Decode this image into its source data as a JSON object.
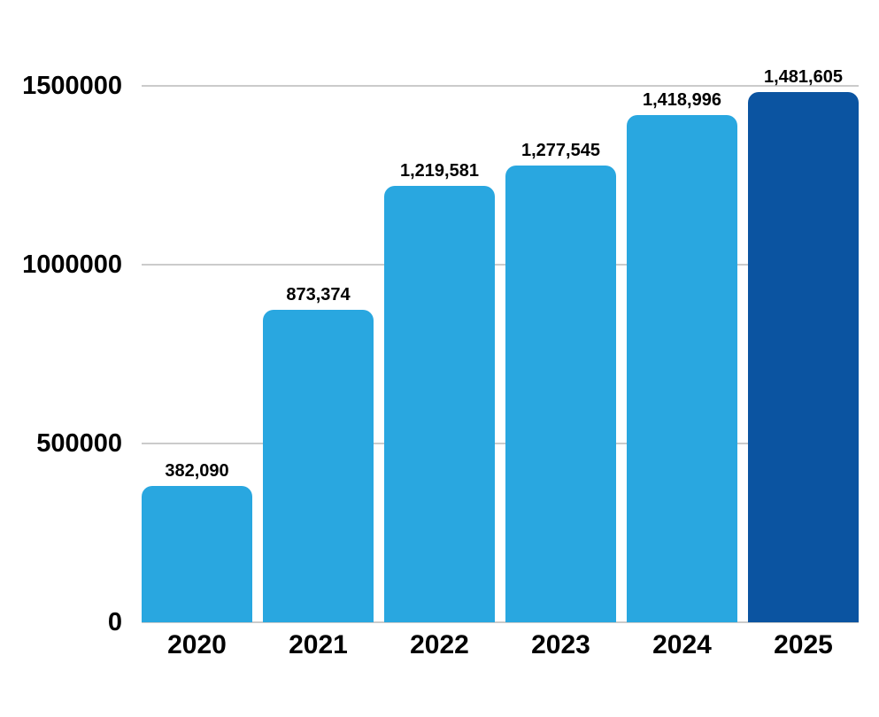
{
  "chart_data": {
    "type": "bar",
    "title": "",
    "xlabel": "",
    "ylabel": "",
    "categories": [
      "2020",
      "2021",
      "2022",
      "2023",
      "2024",
      "2025"
    ],
    "values": [
      382090,
      873374,
      1219581,
      1277545,
      1418996,
      1481605
    ],
    "value_labels": [
      "382,090",
      "873,374",
      "1,219,581",
      "1,277,545",
      "1,418,996",
      "1,481,605"
    ],
    "ylim": [
      0,
      1500000
    ],
    "yticks": [
      0,
      500000,
      1000000,
      1500000
    ],
    "ytick_labels": [
      "0",
      "500000",
      "1000000",
      "1500000"
    ],
    "grid": true,
    "legend": false,
    "bar_colors": [
      "#29A7E0",
      "#29A7E0",
      "#29A7E0",
      "#29A7E0",
      "#29A7E0",
      "#0B54A1"
    ],
    "colors": {
      "bar_light": "#29A7E0",
      "bar_dark": "#0B54A1",
      "gridline": "#CBCBCB",
      "text": "#000000",
      "background": "#FFFFFF"
    }
  }
}
